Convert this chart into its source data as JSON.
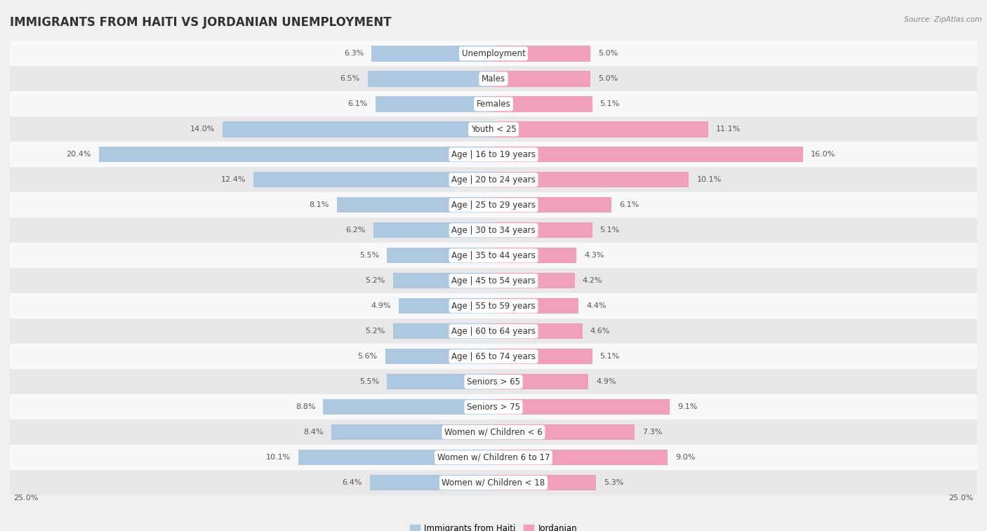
{
  "title": "IMMIGRANTS FROM HAITI VS JORDANIAN UNEMPLOYMENT",
  "source": "Source: ZipAtlas.com",
  "categories": [
    "Unemployment",
    "Males",
    "Females",
    "Youth < 25",
    "Age | 16 to 19 years",
    "Age | 20 to 24 years",
    "Age | 25 to 29 years",
    "Age | 30 to 34 years",
    "Age | 35 to 44 years",
    "Age | 45 to 54 years",
    "Age | 55 to 59 years",
    "Age | 60 to 64 years",
    "Age | 65 to 74 years",
    "Seniors > 65",
    "Seniors > 75",
    "Women w/ Children < 6",
    "Women w/ Children 6 to 17",
    "Women w/ Children < 18"
  ],
  "haiti_values": [
    6.3,
    6.5,
    6.1,
    14.0,
    20.4,
    12.4,
    8.1,
    6.2,
    5.5,
    5.2,
    4.9,
    5.2,
    5.6,
    5.5,
    8.8,
    8.4,
    10.1,
    6.4
  ],
  "jordan_values": [
    5.0,
    5.0,
    5.1,
    11.1,
    16.0,
    10.1,
    6.1,
    5.1,
    4.3,
    4.2,
    4.4,
    4.6,
    5.1,
    4.9,
    9.1,
    7.3,
    9.0,
    5.3
  ],
  "haiti_color": "#adc8e0",
  "jordan_color": "#f0a0b8",
  "haiti_label": "Immigrants from Haiti",
  "jordan_label": "Jordanian",
  "x_max": 25.0,
  "background_color": "#f0f0f0",
  "row_color_light": "#f8f8f8",
  "row_color_dark": "#e8e8e8",
  "title_fontsize": 12,
  "label_fontsize": 8.5,
  "value_fontsize": 8.0,
  "bar_height": 0.62
}
